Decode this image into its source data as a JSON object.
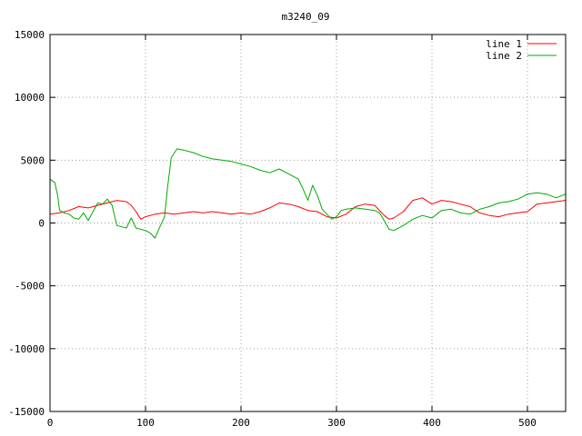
{
  "chart_data": {
    "type": "line",
    "title": "m3240_09",
    "xlim": [
      0,
      540
    ],
    "ylim": [
      -15000,
      15000
    ],
    "xticks": [
      0,
      100,
      200,
      300,
      400,
      500
    ],
    "yticks": [
      -15000,
      -10000,
      -5000,
      0,
      5000,
      10000,
      15000
    ],
    "grid": true,
    "legend_position": "top-right",
    "series": [
      {
        "name": "line 1",
        "color": "#ff0000",
        "points": [
          [
            0,
            700
          ],
          [
            10,
            800
          ],
          [
            20,
            1000
          ],
          [
            30,
            1300
          ],
          [
            40,
            1200
          ],
          [
            50,
            1400
          ],
          [
            60,
            1600
          ],
          [
            70,
            1800
          ],
          [
            80,
            1700
          ],
          [
            85,
            1400
          ],
          [
            90,
            900
          ],
          [
            95,
            300
          ],
          [
            100,
            500
          ],
          [
            110,
            700
          ],
          [
            120,
            800
          ],
          [
            130,
            700
          ],
          [
            140,
            800
          ],
          [
            150,
            900
          ],
          [
            160,
            800
          ],
          [
            170,
            900
          ],
          [
            180,
            800
          ],
          [
            190,
            700
          ],
          [
            200,
            800
          ],
          [
            210,
            700
          ],
          [
            220,
            900
          ],
          [
            230,
            1200
          ],
          [
            240,
            1600
          ],
          [
            250,
            1500
          ],
          [
            260,
            1300
          ],
          [
            270,
            1000
          ],
          [
            280,
            900
          ],
          [
            290,
            500
          ],
          [
            300,
            400
          ],
          [
            310,
            700
          ],
          [
            320,
            1300
          ],
          [
            330,
            1500
          ],
          [
            340,
            1400
          ],
          [
            350,
            600
          ],
          [
            355,
            300
          ],
          [
            360,
            400
          ],
          [
            370,
            900
          ],
          [
            380,
            1800
          ],
          [
            390,
            2000
          ],
          [
            400,
            1500
          ],
          [
            410,
            1800
          ],
          [
            420,
            1700
          ],
          [
            430,
            1500
          ],
          [
            440,
            1300
          ],
          [
            450,
            800
          ],
          [
            460,
            600
          ],
          [
            470,
            500
          ],
          [
            480,
            700
          ],
          [
            490,
            800
          ],
          [
            500,
            900
          ],
          [
            510,
            1500
          ],
          [
            520,
            1600
          ],
          [
            530,
            1700
          ],
          [
            540,
            1800
          ]
        ]
      },
      {
        "name": "line 2",
        "color": "#00aa00",
        "points": [
          [
            0,
            3500
          ],
          [
            5,
            3200
          ],
          [
            8,
            2200
          ],
          [
            10,
            1000
          ],
          [
            15,
            800
          ],
          [
            20,
            700
          ],
          [
            25,
            400
          ],
          [
            30,
            300
          ],
          [
            35,
            800
          ],
          [
            40,
            200
          ],
          [
            45,
            900
          ],
          [
            50,
            1600
          ],
          [
            55,
            1500
          ],
          [
            60,
            1900
          ],
          [
            65,
            1400
          ],
          [
            70,
            -200
          ],
          [
            75,
            -300
          ],
          [
            80,
            -400
          ],
          [
            85,
            400
          ],
          [
            90,
            -400
          ],
          [
            100,
            -600
          ],
          [
            105,
            -800
          ],
          [
            110,
            -1200
          ],
          [
            115,
            -300
          ],
          [
            120,
            500
          ],
          [
            123,
            2800
          ],
          [
            127,
            5200
          ],
          [
            133,
            5900
          ],
          [
            140,
            5800
          ],
          [
            150,
            5600
          ],
          [
            160,
            5300
          ],
          [
            170,
            5100
          ],
          [
            180,
            5000
          ],
          [
            190,
            4900
          ],
          [
            200,
            4700
          ],
          [
            210,
            4500
          ],
          [
            220,
            4200
          ],
          [
            230,
            4000
          ],
          [
            240,
            4300
          ],
          [
            250,
            3900
          ],
          [
            260,
            3500
          ],
          [
            265,
            2700
          ],
          [
            270,
            1800
          ],
          [
            275,
            3000
          ],
          [
            280,
            2200
          ],
          [
            285,
            1100
          ],
          [
            290,
            700
          ],
          [
            295,
            300
          ],
          [
            300,
            500
          ],
          [
            305,
            1000
          ],
          [
            310,
            1100
          ],
          [
            320,
            1200
          ],
          [
            330,
            1100
          ],
          [
            340,
            1000
          ],
          [
            345,
            800
          ],
          [
            350,
            200
          ],
          [
            355,
            -500
          ],
          [
            360,
            -600
          ],
          [
            370,
            -200
          ],
          [
            380,
            300
          ],
          [
            390,
            600
          ],
          [
            400,
            400
          ],
          [
            410,
            1000
          ],
          [
            420,
            1100
          ],
          [
            430,
            800
          ],
          [
            440,
            700
          ],
          [
            450,
            1100
          ],
          [
            460,
            1300
          ],
          [
            470,
            1600
          ],
          [
            480,
            1700
          ],
          [
            490,
            1900
          ],
          [
            500,
            2300
          ],
          [
            510,
            2400
          ],
          [
            520,
            2300
          ],
          [
            530,
            2000
          ],
          [
            540,
            2300
          ]
        ]
      }
    ]
  }
}
